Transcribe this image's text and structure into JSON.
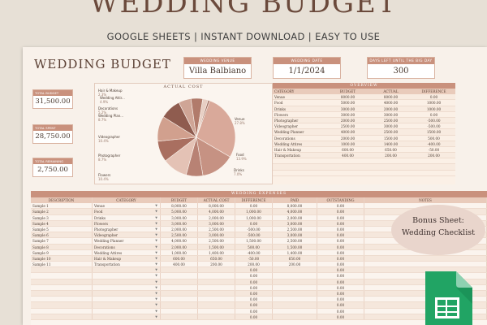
{
  "banner": {
    "title": "WEDDING BUDGET",
    "tagline": "GOOGLE SHEETS | INSTANT DOWNLOAD | EASY TO USE"
  },
  "sheet": {
    "title": "WEDDING BUDGET",
    "venue": {
      "label": "WEDDING VENUE",
      "value": "Villa Balbiano"
    },
    "date": {
      "label": "WEDDING DATE",
      "value": "1/1/2024"
    },
    "days_left": {
      "label": "DAYS LEFT UNTIL THE BIG DAY",
      "value": "300"
    }
  },
  "summary": {
    "total_budget": {
      "label": "TOTAL BUDGET",
      "value": "31,500.00"
    },
    "total_spent": {
      "label": "TOTAL SPENT",
      "value": "28,750.00"
    },
    "total_remaining": {
      "label": "TOTAL REMAINING",
      "value": "2,750.00"
    }
  },
  "pie": {
    "title": "ACTUAL COST",
    "colors": [
      "#d9a99a",
      "#c69283",
      "#b88274",
      "#e4c2b5",
      "#a96f60",
      "#d1a08e",
      "#8f5c4f",
      "#cfa596",
      "#b17b6b",
      "#e8cfc4",
      "#9e6a5c"
    ],
    "slices": [
      {
        "label": "Venue",
        "pct": "27.8%",
        "value": 8000
      },
      {
        "label": "Food",
        "pct": "13.9%",
        "value": 4000
      },
      {
        "label": "Drinks",
        "pct": "7.0%",
        "value": 2000
      },
      {
        "label": "Flowers",
        "pct": "10.4%",
        "value": 3000
      },
      {
        "label": "Photographer",
        "pct": "8.7%",
        "value": 2500
      },
      {
        "label": "Videographer",
        "pct": "10.4%",
        "value": 3000
      },
      {
        "label": "Wedding Plan...",
        "pct": "8.7%",
        "value": 2500
      },
      {
        "label": "Decorations",
        "pct": "5.2%",
        "value": 1500
      },
      {
        "label": "Wedding Attir...",
        "pct": "4.9%",
        "value": 1400
      },
      {
        "label": "Hair & Makeup",
        "pct": "2.3%",
        "value": 650
      },
      {
        "label": "Transportation",
        "pct": "0.7%",
        "value": 200
      }
    ]
  },
  "overview": {
    "title": "OVERVIEW",
    "columns": [
      "CATEGORY",
      "BUDGET",
      "ACTUAL",
      "DIFFERENCE"
    ],
    "rows": [
      [
        "Venue",
        "8000.00",
        "8000.00",
        "0.00"
      ],
      [
        "Food",
        "5000.00",
        "4000.00",
        "1000.00"
      ],
      [
        "Drinks",
        "3000.00",
        "2000.00",
        "1000.00"
      ],
      [
        "Flowers",
        "3000.00",
        "3000.00",
        "0.00"
      ],
      [
        "Photographer",
        "2000.00",
        "2500.00",
        "-500.00"
      ],
      [
        "Videographer",
        "2500.00",
        "3000.00",
        "-500.00"
      ],
      [
        "Wedding Planner",
        "4000.00",
        "2500.00",
        "1500.00"
      ],
      [
        "Decorations",
        "2000.00",
        "1500.00",
        "500.00"
      ],
      [
        "Wedding Attires",
        "1000.00",
        "1400.00",
        "-400.00"
      ],
      [
        "Hair & Makeup",
        "600.00",
        "650.00",
        "-50.00"
      ],
      [
        "Transportation",
        "400.00",
        "200.00",
        "200.00"
      ],
      [
        "",
        "",
        "",
        ""
      ],
      [
        "",
        "",
        "",
        ""
      ],
      [
        "",
        "",
        "",
        ""
      ]
    ]
  },
  "expenses": {
    "title": "WEDDING EXPENSES",
    "columns": [
      "DESCRIPTION",
      "CATEGORY",
      "BUDGET",
      "ACTUAL COST",
      "DIFFERENCE",
      "PAID",
      "OUTSTANDING",
      "NOTES"
    ],
    "rows": [
      [
        "Sample 1",
        "Venue",
        "8,000.00",
        "8,000.00",
        "0.00",
        "8,000.00",
        "0.00",
        ""
      ],
      [
        "Sample 2",
        "Food",
        "5,000.00",
        "4,000.00",
        "1,000.00",
        "4,000.00",
        "0.00",
        ""
      ],
      [
        "Sample 3",
        "Drinks",
        "3,000.00",
        "2,000.00",
        "1,000.00",
        "2,000.00",
        "0.00",
        ""
      ],
      [
        "Sample 4",
        "Flowers",
        "3,000.00",
        "3,000.00",
        "0.00",
        "3,000.00",
        "0.00",
        ""
      ],
      [
        "Sample 5",
        "Photographer",
        "2,000.00",
        "2,500.00",
        "-500.00",
        "2,500.00",
        "0.00",
        ""
      ],
      [
        "Sample 6",
        "Videographer",
        "2,500.00",
        "3,000.00",
        "-500.00",
        "3,000.00",
        "0.00",
        ""
      ],
      [
        "Sample 7",
        "Wedding Planner",
        "4,000.00",
        "2,500.00",
        "1,500.00",
        "2,500.00",
        "0.00",
        ""
      ],
      [
        "Sample 8",
        "Decorations",
        "2,000.00",
        "1,500.00",
        "500.00",
        "1,500.00",
        "0.00",
        ""
      ],
      [
        "Sample 9",
        "Wedding Attires",
        "1,000.00",
        "1,400.00",
        "-400.00",
        "1,400.00",
        "0.00",
        ""
      ],
      [
        "Sample 10",
        "Hair & Makeup",
        "600.00",
        "650.00",
        "-50.00",
        "650.00",
        "0.00",
        ""
      ],
      [
        "Sample 11",
        "Transportation",
        "400.00",
        "200.00",
        "200.00",
        "200.00",
        "0.00",
        ""
      ],
      [
        "",
        "",
        "",
        "",
        "0.00",
        "",
        "0.00",
        ""
      ],
      [
        "",
        "",
        "",
        "",
        "0.00",
        "",
        "0.00",
        ""
      ],
      [
        "",
        "",
        "",
        "",
        "0.00",
        "",
        "0.00",
        ""
      ],
      [
        "",
        "",
        "",
        "",
        "0.00",
        "",
        "0.00",
        ""
      ],
      [
        "",
        "",
        "",
        "",
        "0.00",
        "",
        "0.00",
        ""
      ],
      [
        "",
        "",
        "",
        "",
        "0.00",
        "",
        "0.00",
        ""
      ],
      [
        "",
        "",
        "",
        "",
        "0.00",
        "",
        "0.00",
        ""
      ],
      [
        "",
        "",
        "",
        "",
        "0.00",
        "",
        "0.00",
        ""
      ],
      [
        "",
        "",
        "",
        "",
        "0.00",
        "",
        "0.00",
        ""
      ]
    ]
  },
  "bonus": {
    "line1": "Bonus Sheet:",
    "line2": "Wedding Checklist"
  },
  "icons": {
    "sheets": "google-sheets-icon",
    "dropdown": "dropdown-arrow-icon"
  }
}
